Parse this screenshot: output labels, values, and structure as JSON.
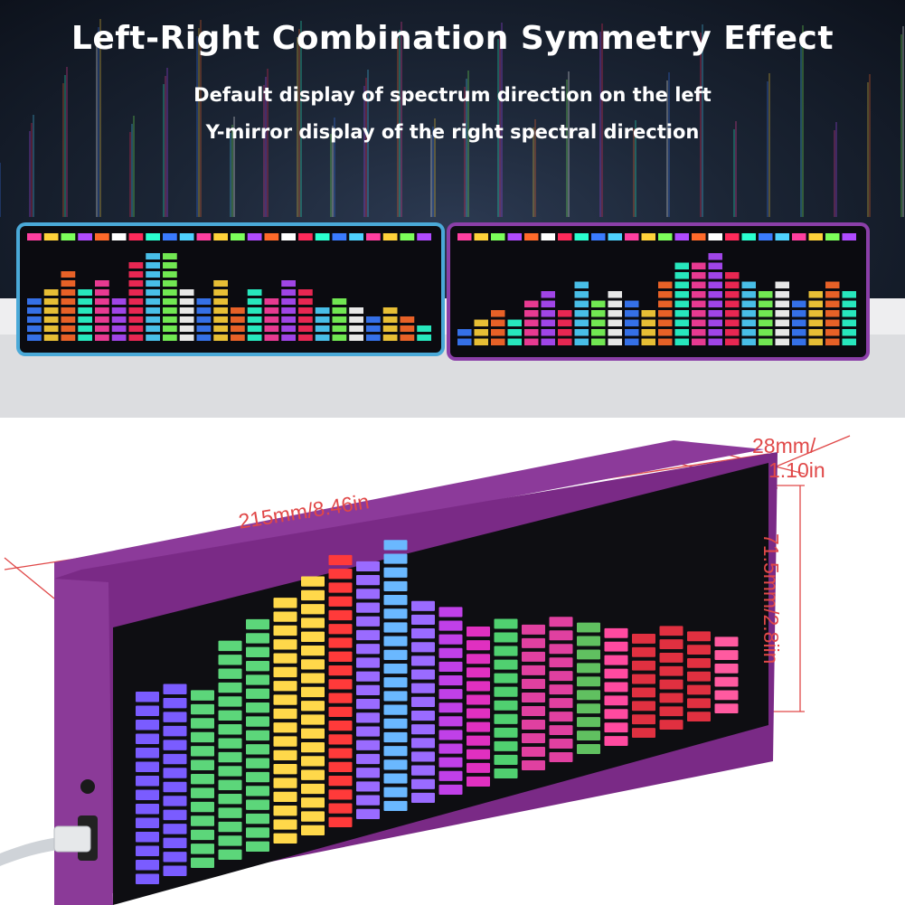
{
  "header": {
    "title": "Left-Right Combination Symmetry Effect",
    "line1": "Default display of spectrum direction on the left",
    "line2": "Y-mirror display of the right spectral direction"
  },
  "dimensions": {
    "length": "215mm/8.46in",
    "depth_line1": "28mm/",
    "depth_line2": "1.10in",
    "height": "71.5mm/2.8iin"
  },
  "colors": {
    "dimension_lines": "#e04848",
    "case_purple": "#7a2a86",
    "left_frame": "#4aa9d8",
    "right_frame": "#8b3fa8"
  }
}
